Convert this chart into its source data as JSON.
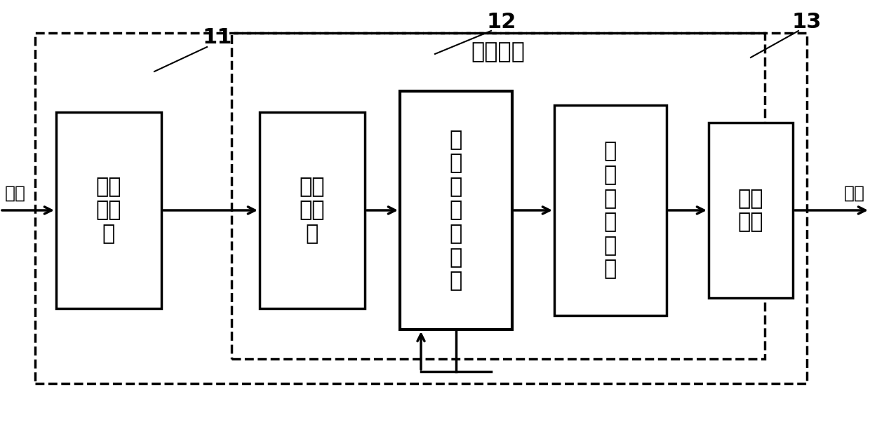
{
  "fig_width": 12.4,
  "fig_height": 6.02,
  "dpi": 100,
  "bg_color": "#ffffff",
  "label_11": "11",
  "label_12": "12",
  "label_13": "13",
  "calc_module_label": "计算模块",
  "box1_label": "预处\n理模\n块",
  "box2_label": "初始\n化模\n块",
  "box3_label": "响\n应\n度\n计\n算\n模\n块",
  "box4_label": "参\n数\n计\n算\n模\n块",
  "box5_label": "输出\n模块",
  "input_label": "输入",
  "output_label": "输出",
  "text_color": "#000000",
  "box_line_color": "#000000",
  "dashed_line_color": "#000000",
  "arrow_color": "#000000"
}
